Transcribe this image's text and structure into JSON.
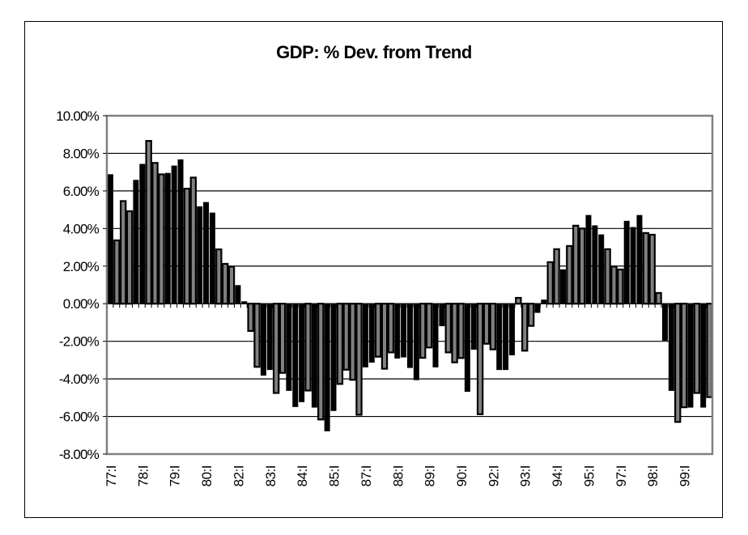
{
  "chart_data": {
    "type": "bar",
    "title": "GDP: % Dev. from Trend",
    "xlabel": "",
    "ylabel": "",
    "ylim": [
      -8,
      10
    ],
    "yticks": [
      10,
      8,
      6,
      4,
      2,
      0,
      -2,
      -4,
      -6,
      -8
    ],
    "ytick_labels": [
      "10.00%",
      "8.00%",
      "6.00%",
      "4.00%",
      "2.00%",
      "0.00%",
      "-2.00%",
      "-4.00%",
      "-6.00%",
      "-8.00%"
    ],
    "grid": "horizontal",
    "legend": "none",
    "xtick_labels": [
      "77:I",
      "78:I",
      "79:I",
      "80:I",
      "82:I",
      "83:I",
      "84:I",
      "85:I",
      "87:I",
      "88:I",
      "89:I",
      "90:I",
      "92:I",
      "93:I",
      "94:I",
      "95:I",
      "97:I",
      "98:I",
      "99:I"
    ],
    "xtick_every": 5,
    "series": [
      {
        "name": "GDP % deviation from trend",
        "unit": "%",
        "values": [
          6.87,
          3.37,
          5.46,
          4.92,
          6.57,
          7.42,
          8.66,
          7.49,
          6.88,
          6.94,
          7.33,
          7.66,
          6.12,
          6.71,
          5.16,
          5.39,
          4.83,
          2.89,
          2.12,
          1.97,
          0.97,
          0.11,
          -1.45,
          -3.36,
          -3.81,
          -3.51,
          -4.75,
          -3.68,
          -4.62,
          -5.48,
          -5.22,
          -4.62,
          -5.51,
          -6.16,
          -6.77,
          -5.69,
          -4.27,
          -3.51,
          -4.05,
          -5.91,
          -3.37,
          -3.12,
          -2.82,
          -3.46,
          -2.59,
          -2.9,
          -2.84,
          -3.4,
          -4.05,
          -2.88,
          -2.33,
          -3.37,
          -1.18,
          -2.59,
          -3.12,
          -2.89,
          -4.67,
          -2.43,
          -5.88,
          -2.13,
          -2.43,
          -3.51,
          -3.51,
          -2.73,
          0.31,
          -2.5,
          -1.18,
          -0.47,
          0.2,
          2.21,
          2.9,
          1.81,
          3.07,
          4.15,
          4.0,
          4.7,
          4.15,
          3.67,
          2.9,
          1.98,
          1.82,
          4.39,
          4.06,
          4.7,
          3.76,
          3.67,
          0.57,
          -1.95,
          -4.62,
          -6.29,
          -5.51,
          -5.51,
          -4.75,
          -5.51,
          -4.97
        ]
      }
    ],
    "colors": {
      "bar_outline": "#000000",
      "bar_fill": "#808080",
      "grid": "#000000",
      "plot_border": "#808080"
    }
  }
}
